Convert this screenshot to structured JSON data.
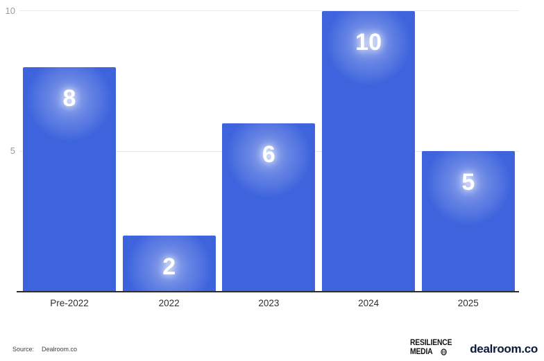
{
  "chart_data": {
    "type": "bar",
    "title": "",
    "categories": [
      "Pre-2022",
      "2022",
      "2023",
      "2024",
      "2025"
    ],
    "values": [
      8,
      2,
      6,
      10,
      5
    ],
    "xlabel": "",
    "ylabel": "",
    "ylim": [
      0,
      10
    ],
    "yticks": [
      5,
      10
    ],
    "grid": true,
    "legend": false,
    "bar_color": "#3d63dd",
    "label_color": "#ffffff",
    "tick_color": "#9a9a9a",
    "axis_color": "#2d2d2d"
  },
  "footer": {
    "source_label": "Source:",
    "source_value": "Dealroom.co"
  },
  "branding": {
    "resilience_line1": "RESILIENCE",
    "resilience_line2": "MEDIA",
    "globe_icon": "globe-icon",
    "dealroom_text": "dealroom.co",
    "dealroom_color": "#0a1a38"
  }
}
